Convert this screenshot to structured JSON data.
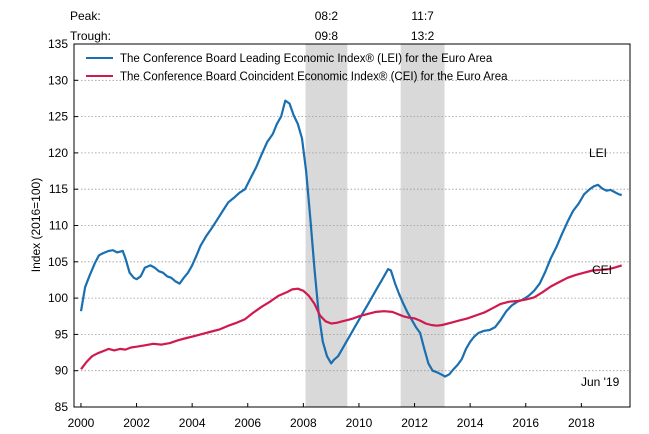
{
  "header": {
    "peak_label": "Peak:",
    "trough_label": "Trough:",
    "recessions": [
      {
        "peak": "08:2",
        "trough": "09:8"
      },
      {
        "peak": "11:7",
        "trough": "13:2"
      }
    ]
  },
  "chart_data": {
    "type": "line",
    "title": "",
    "xlabel": "",
    "ylabel": "Index (2016=100)",
    "xlim": [
      1999.75,
      2019.75
    ],
    "ylim": [
      85,
      135
    ],
    "y_ticks": [
      85,
      90,
      95,
      100,
      105,
      110,
      115,
      120,
      125,
      130,
      135
    ],
    "x_ticks": [
      2000,
      2002,
      2004,
      2006,
      2008,
      2010,
      2012,
      2014,
      2016,
      2018
    ],
    "x_tick_labels": [
      "2000",
      "2002",
      "2004",
      "2006",
      "2008",
      "2010",
      "2012",
      "2014",
      "2016",
      "2018"
    ],
    "grid": true,
    "legend_position": "top-left",
    "recession_shading": [
      [
        2008.08,
        2009.58
      ],
      [
        2011.5,
        2013.08
      ]
    ],
    "series": [
      {
        "name": "The Conference Board Leading Economic Index® (LEI) for the Euro Area",
        "short_label": "LEI",
        "color": "#1a6fb0",
        "x": [
          2000.0,
          2000.15,
          2000.3,
          2000.5,
          2000.65,
          2000.8,
          2001.0,
          2001.15,
          2001.3,
          2001.5,
          2001.6,
          2001.75,
          2001.9,
          2002.0,
          2002.15,
          2002.3,
          2002.5,
          2002.65,
          2002.8,
          2002.95,
          2003.1,
          2003.25,
          2003.4,
          2003.55,
          2003.7,
          2003.85,
          2004.0,
          2004.15,
          2004.3,
          2004.5,
          2004.7,
          2004.9,
          2005.1,
          2005.3,
          2005.5,
          2005.7,
          2005.9,
          2006.1,
          2006.3,
          2006.5,
          2006.7,
          2006.9,
          2007.05,
          2007.2,
          2007.35,
          2007.5,
          2007.65,
          2007.8,
          2007.95,
          2008.1,
          2008.25,
          2008.4,
          2008.55,
          2008.7,
          2008.85,
          2009.0,
          2009.1,
          2009.25,
          2009.4,
          2009.55,
          2009.7,
          2009.85,
          2010.0,
          2010.15,
          2010.3,
          2010.45,
          2010.6,
          2010.75,
          2010.9,
          2011.05,
          2011.15,
          2011.3,
          2011.45,
          2011.6,
          2011.75,
          2011.9,
          2012.05,
          2012.2,
          2012.35,
          2012.5,
          2012.65,
          2012.8,
          2012.95,
          2013.1,
          2013.25,
          2013.4,
          2013.55,
          2013.7,
          2013.85,
          2014.0,
          2014.15,
          2014.3,
          2014.5,
          2014.7,
          2014.9,
          2015.1,
          2015.3,
          2015.5,
          2015.7,
          2015.9,
          2016.1,
          2016.3,
          2016.5,
          2016.7,
          2016.9,
          2017.1,
          2017.3,
          2017.5,
          2017.7,
          2017.9,
          2018.1,
          2018.3,
          2018.45,
          2018.6,
          2018.75,
          2018.9,
          2019.05,
          2019.2,
          2019.35,
          2019.45
        ],
        "values": [
          98.2,
          101.5,
          103.0,
          104.8,
          105.9,
          106.2,
          106.5,
          106.6,
          106.3,
          106.5,
          105.5,
          103.5,
          102.8,
          102.6,
          103.0,
          104.2,
          104.5,
          104.2,
          103.7,
          103.5,
          103.0,
          102.8,
          102.3,
          102.0,
          102.8,
          103.5,
          104.5,
          105.8,
          107.2,
          108.5,
          109.6,
          110.8,
          112.0,
          113.2,
          113.8,
          114.5,
          115.0,
          116.5,
          118.0,
          119.8,
          121.5,
          122.6,
          124.0,
          125.0,
          127.2,
          126.8,
          125.2,
          124.0,
          122.0,
          117.5,
          111.0,
          104.0,
          98.0,
          94.0,
          92.0,
          91.0,
          91.5,
          92.0,
          93.0,
          94.0,
          95.0,
          96.0,
          97.0,
          98.0,
          99.0,
          100.0,
          101.0,
          102.0,
          103.0,
          104.0,
          103.8,
          102.0,
          100.5,
          99.2,
          98.0,
          97.0,
          96.0,
          95.2,
          93.0,
          91.0,
          90.0,
          89.8,
          89.5,
          89.2,
          89.5,
          90.2,
          90.8,
          91.6,
          93.0,
          94.0,
          94.7,
          95.2,
          95.5,
          95.6,
          96.0,
          97.0,
          98.2,
          99.0,
          99.5,
          99.8,
          100.3,
          101.0,
          102.0,
          103.6,
          105.5,
          107.0,
          108.8,
          110.5,
          112.0,
          113.0,
          114.3,
          115.0,
          115.4,
          115.6,
          115.1,
          114.8,
          114.9,
          114.6,
          114.3,
          114.2
        ]
      },
      {
        "name": "The Conference Board Coincident Economic Index® (CEI) for the Euro Area",
        "short_label": "CEI",
        "color": "#d0194f",
        "x": [
          2000.0,
          2000.2,
          2000.4,
          2000.6,
          2000.8,
          2001.0,
          2001.2,
          2001.4,
          2001.6,
          2001.8,
          2002.0,
          2002.3,
          2002.6,
          2002.9,
          2003.2,
          2003.5,
          2003.8,
          2004.1,
          2004.4,
          2004.7,
          2005.0,
          2005.3,
          2005.6,
          2005.9,
          2006.2,
          2006.5,
          2006.8,
          2007.1,
          2007.4,
          2007.6,
          2007.8,
          2008.0,
          2008.2,
          2008.4,
          2008.6,
          2008.8,
          2009.0,
          2009.2,
          2009.4,
          2009.6,
          2009.8,
          2010.0,
          2010.3,
          2010.6,
          2010.9,
          2011.2,
          2011.4,
          2011.6,
          2011.8,
          2012.0,
          2012.2,
          2012.4,
          2012.6,
          2012.8,
          2013.0,
          2013.3,
          2013.6,
          2013.9,
          2014.2,
          2014.5,
          2014.8,
          2015.1,
          2015.4,
          2015.7,
          2016.0,
          2016.3,
          2016.6,
          2016.9,
          2017.2,
          2017.5,
          2017.8,
          2018.1,
          2018.4,
          2018.7,
          2019.0,
          2019.2,
          2019.45
        ],
        "values": [
          90.2,
          91.2,
          92.0,
          92.4,
          92.7,
          93.0,
          92.8,
          93.0,
          92.9,
          93.2,
          93.3,
          93.5,
          93.7,
          93.6,
          93.8,
          94.2,
          94.5,
          94.8,
          95.1,
          95.4,
          95.7,
          96.2,
          96.6,
          97.1,
          98.0,
          98.8,
          99.5,
          100.3,
          100.8,
          101.2,
          101.3,
          101.0,
          100.3,
          99.2,
          97.6,
          96.8,
          96.5,
          96.6,
          96.8,
          97.0,
          97.2,
          97.5,
          97.8,
          98.1,
          98.2,
          98.1,
          97.8,
          97.5,
          97.3,
          97.2,
          96.9,
          96.5,
          96.3,
          96.2,
          96.3,
          96.6,
          96.9,
          97.2,
          97.6,
          98.0,
          98.6,
          99.2,
          99.5,
          99.6,
          99.8,
          100.1,
          100.8,
          101.6,
          102.2,
          102.8,
          103.2,
          103.5,
          103.8,
          103.9,
          104.0,
          104.2,
          104.5
        ]
      }
    ],
    "annotations": [
      "LEI",
      "CEI",
      "Jun '19"
    ]
  }
}
